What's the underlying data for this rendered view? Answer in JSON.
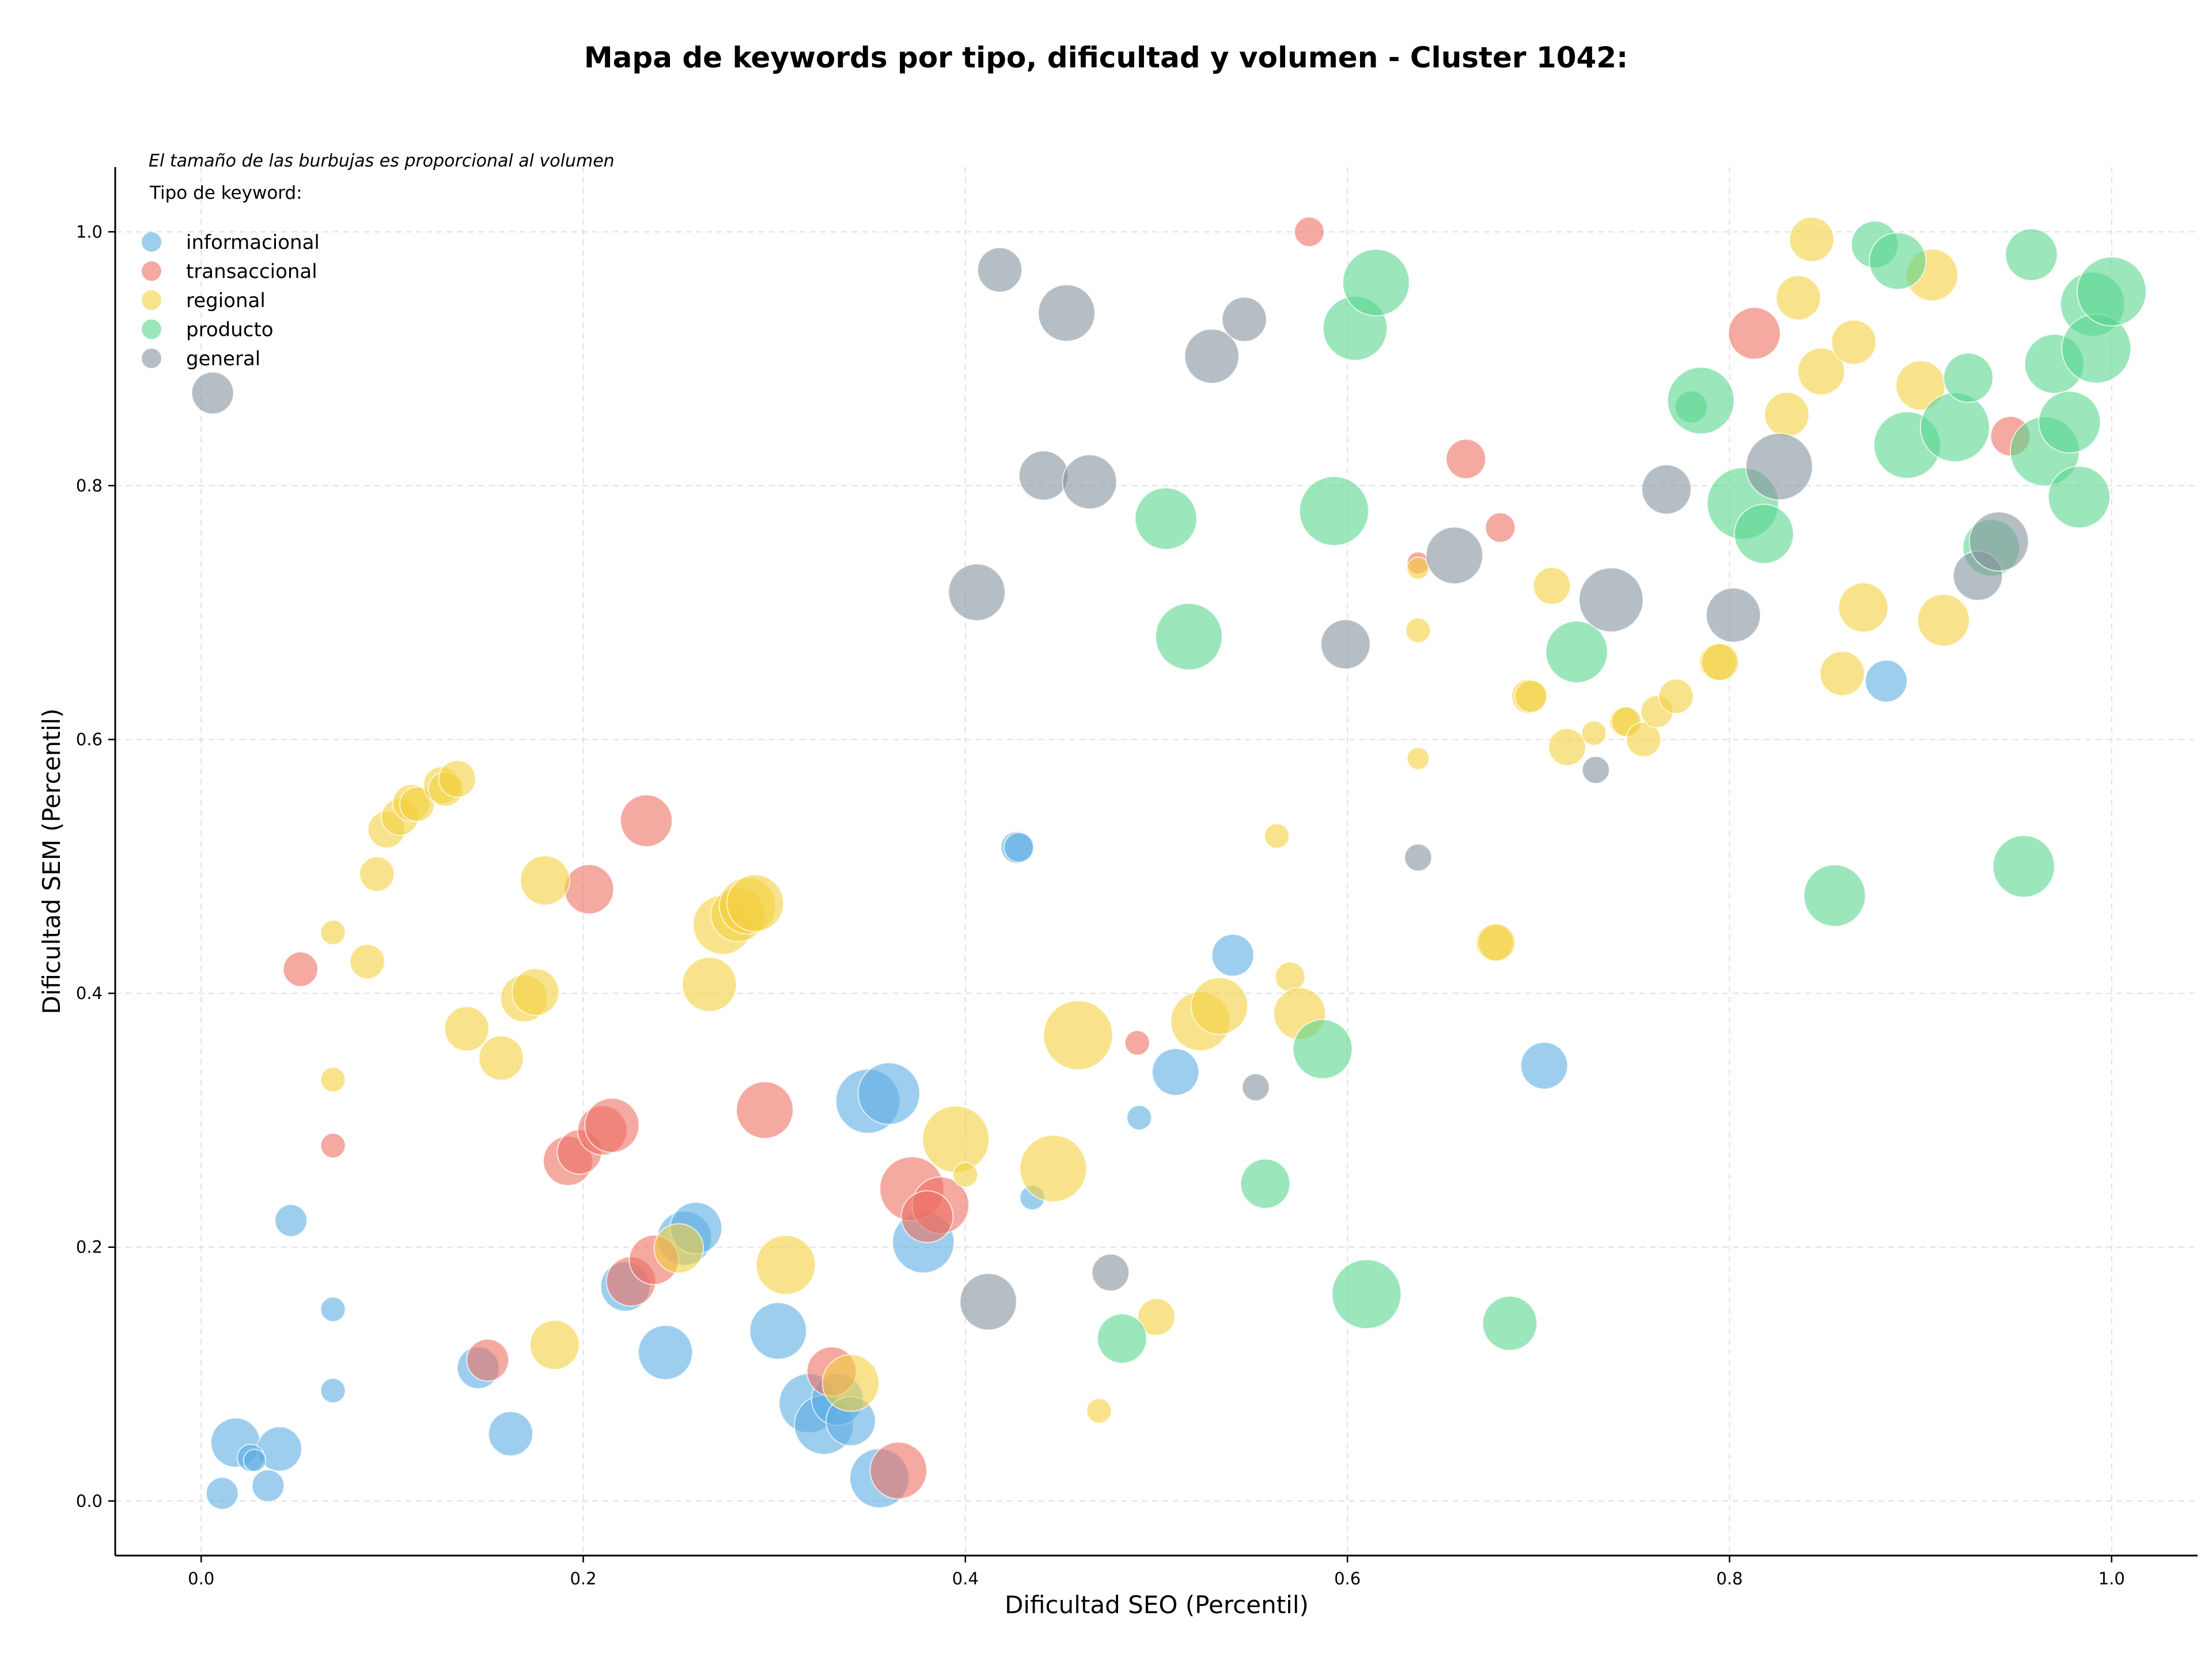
{
  "chart_data": {
    "type": "scatter",
    "title": "Mapa de keywords por tipo, dificultad y volumen - Cluster 1042:",
    "xlabel": "Dificultad SEO (Percentil)",
    "ylabel": "Dificultad SEM (Percentil)",
    "annotation": "El tamaño de las burbujas es proporcional al volumen",
    "legend_title": "Tipo de keyword:",
    "legend_position": "top-left",
    "xlim": [
      -0.045,
      1.045
    ],
    "ylim": [
      -0.043,
      1.051
    ],
    "xticks": [
      "0.0",
      "0.2",
      "0.4",
      "0.6",
      "0.8",
      "1.0"
    ],
    "yticks": [
      "0.0",
      "0.2",
      "0.4",
      "0.6",
      "0.8",
      "1.0"
    ],
    "grid": true,
    "size_note": "values triple is [x, y, relative volume]",
    "series": [
      {
        "name": "informacional",
        "color": "#5DADE2",
        "points": [
          [
            0.018,
            0.046,
            40
          ],
          [
            0.041,
            0.041,
            36
          ],
          [
            0.026,
            0.034,
            22
          ],
          [
            0.028,
            0.032,
            18
          ],
          [
            0.011,
            0.006,
            26
          ],
          [
            0.035,
            0.012,
            26
          ],
          [
            0.047,
            0.221,
            26
          ],
          [
            0.069,
            0.151,
            20
          ],
          [
            0.069,
            0.087,
            20
          ],
          [
            0.145,
            0.105,
            34
          ],
          [
            0.162,
            0.053,
            36
          ],
          [
            0.222,
            0.169,
            40
          ],
          [
            0.243,
            0.117,
            44
          ],
          [
            0.253,
            0.207,
            44
          ],
          [
            0.259,
            0.215,
            42
          ],
          [
            0.302,
            0.134,
            46
          ],
          [
            0.318,
            0.077,
            48
          ],
          [
            0.326,
            0.06,
            48
          ],
          [
            0.333,
            0.08,
            42
          ],
          [
            0.34,
            0.063,
            40
          ],
          [
            0.349,
            0.315,
            52
          ],
          [
            0.36,
            0.321,
            50
          ],
          [
            0.355,
            0.018,
            48
          ],
          [
            0.378,
            0.204,
            50
          ],
          [
            0.427,
            0.515,
            26
          ],
          [
            0.428,
            0.515,
            24
          ],
          [
            0.435,
            0.239,
            20
          ],
          [
            0.491,
            0.302,
            20
          ],
          [
            0.51,
            0.338,
            38
          ],
          [
            0.54,
            0.43,
            34
          ],
          [
            0.703,
            0.343,
            38
          ],
          [
            0.882,
            0.646,
            34
          ]
        ]
      },
      {
        "name": "transaccional",
        "color": "#EC7063",
        "points": [
          [
            0.052,
            0.419,
            28
          ],
          [
            0.069,
            0.28,
            20
          ],
          [
            0.15,
            0.111,
            34
          ],
          [
            0.192,
            0.268,
            40
          ],
          [
            0.198,
            0.275,
            36
          ],
          [
            0.203,
            0.482,
            40
          ],
          [
            0.21,
            0.292,
            40
          ],
          [
            0.215,
            0.296,
            44
          ],
          [
            0.225,
            0.173,
            40
          ],
          [
            0.233,
            0.536,
            42
          ],
          [
            0.237,
            0.19,
            40
          ],
          [
            0.295,
            0.308,
            46
          ],
          [
            0.33,
            0.102,
            40
          ],
          [
            0.365,
            0.024,
            46
          ],
          [
            0.372,
            0.246,
            52
          ],
          [
            0.387,
            0.233,
            46
          ],
          [
            0.38,
            0.224,
            42
          ],
          [
            0.49,
            0.361,
            20
          ],
          [
            0.58,
            1.0,
            24
          ],
          [
            0.637,
            0.739,
            18
          ],
          [
            0.662,
            0.821,
            32
          ],
          [
            0.68,
            0.767,
            24
          ],
          [
            0.813,
            0.92,
            42
          ],
          [
            0.947,
            0.839,
            32
          ]
        ]
      },
      {
        "name": "regional",
        "color": "#F4D03F",
        "points": [
          [
            0.069,
            0.448,
            20
          ],
          [
            0.069,
            0.332,
            20
          ],
          [
            0.087,
            0.425,
            28
          ],
          [
            0.092,
            0.494,
            28
          ],
          [
            0.097,
            0.529,
            30
          ],
          [
            0.104,
            0.539,
            30
          ],
          [
            0.11,
            0.55,
            30
          ],
          [
            0.113,
            0.549,
            28
          ],
          [
            0.126,
            0.564,
            30
          ],
          [
            0.128,
            0.561,
            28
          ],
          [
            0.134,
            0.569,
            30
          ],
          [
            0.139,
            0.372,
            36
          ],
          [
            0.157,
            0.349,
            36
          ],
          [
            0.169,
            0.396,
            38
          ],
          [
            0.175,
            0.401,
            38
          ],
          [
            0.18,
            0.489,
            40
          ],
          [
            0.185,
            0.123,
            40
          ],
          [
            0.25,
            0.199,
            40
          ],
          [
            0.266,
            0.407,
            44
          ],
          [
            0.273,
            0.454,
            48
          ],
          [
            0.281,
            0.462,
            44
          ],
          [
            0.286,
            0.469,
            46
          ],
          [
            0.29,
            0.471,
            46
          ],
          [
            0.306,
            0.186,
            48
          ],
          [
            0.34,
            0.093,
            46
          ],
          [
            0.395,
            0.285,
            54
          ],
          [
            0.4,
            0.257,
            20
          ],
          [
            0.446,
            0.262,
            54
          ],
          [
            0.459,
            0.367,
            56
          ],
          [
            0.47,
            0.071,
            20
          ],
          [
            0.5,
            0.145,
            30
          ],
          [
            0.523,
            0.378,
            48
          ],
          [
            0.533,
            0.39,
            46
          ],
          [
            0.563,
            0.524,
            20
          ],
          [
            0.57,
            0.413,
            24
          ],
          [
            0.575,
            0.384,
            42
          ],
          [
            0.637,
            0.735,
            18
          ],
          [
            0.637,
            0.686,
            20
          ],
          [
            0.637,
            0.585,
            18
          ],
          [
            0.677,
            0.44,
            30
          ],
          [
            0.678,
            0.44,
            30
          ],
          [
            0.695,
            0.634,
            28
          ],
          [
            0.696,
            0.634,
            26
          ],
          [
            0.707,
            0.721,
            30
          ],
          [
            0.715,
            0.594,
            30
          ],
          [
            0.729,
            0.605,
            20
          ],
          [
            0.745,
            0.614,
            24
          ],
          [
            0.746,
            0.614,
            24
          ],
          [
            0.755,
            0.6,
            28
          ],
          [
            0.762,
            0.622,
            26
          ],
          [
            0.772,
            0.634,
            28
          ],
          [
            0.794,
            0.661,
            30
          ],
          [
            0.795,
            0.661,
            30
          ],
          [
            0.83,
            0.856,
            36
          ],
          [
            0.836,
            0.948,
            36
          ],
          [
            0.843,
            0.994,
            36
          ],
          [
            0.848,
            0.89,
            38
          ],
          [
            0.859,
            0.652,
            36
          ],
          [
            0.865,
            0.913,
            36
          ],
          [
            0.87,
            0.704,
            40
          ],
          [
            0.9,
            0.879,
            40
          ],
          [
            0.906,
            0.966,
            42
          ],
          [
            0.912,
            0.694,
            42
          ]
        ]
      },
      {
        "name": "producto",
        "color": "#58D68D",
        "points": [
          [
            0.482,
            0.128,
            40
          ],
          [
            0.505,
            0.774,
            50
          ],
          [
            0.517,
            0.681,
            54
          ],
          [
            0.557,
            0.25,
            40
          ],
          [
            0.587,
            0.356,
            48
          ],
          [
            0.593,
            0.78,
            56
          ],
          [
            0.604,
            0.924,
            52
          ],
          [
            0.61,
            0.163,
            56
          ],
          [
            0.615,
            0.96,
            54
          ],
          [
            0.685,
            0.14,
            44
          ],
          [
            0.72,
            0.669,
            50
          ],
          [
            0.78,
            0.862,
            26
          ],
          [
            0.785,
            0.867,
            54
          ],
          [
            0.807,
            0.786,
            58
          ],
          [
            0.818,
            0.762,
            48
          ],
          [
            0.855,
            0.477,
            50
          ],
          [
            0.876,
            0.99,
            38
          ],
          [
            0.888,
            0.977,
            46
          ],
          [
            0.893,
            0.832,
            54
          ],
          [
            0.918,
            0.846,
            56
          ],
          [
            0.925,
            0.885,
            40
          ],
          [
            0.937,
            0.751,
            46
          ],
          [
            0.954,
            0.5,
            50
          ],
          [
            0.958,
            0.982,
            42
          ],
          [
            0.97,
            0.896,
            48
          ],
          [
            0.965,
            0.827,
            56
          ],
          [
            0.978,
            0.85,
            50
          ],
          [
            0.983,
            0.791,
            50
          ],
          [
            0.99,
            0.943,
            52
          ],
          [
            0.992,
            0.908,
            56
          ],
          [
            1.0,
            0.953,
            56
          ]
        ]
      },
      {
        "name": "general",
        "color": "#85929E",
        "points": [
          [
            0.006,
            0.873,
            34
          ],
          [
            0.406,
            0.716,
            46
          ],
          [
            0.412,
            0.157,
            46
          ],
          [
            0.418,
            0.97,
            36
          ],
          [
            0.441,
            0.808,
            40
          ],
          [
            0.453,
            0.936,
            46
          ],
          [
            0.465,
            0.803,
            44
          ],
          [
            0.476,
            0.18,
            30
          ],
          [
            0.529,
            0.902,
            44
          ],
          [
            0.546,
            0.931,
            36
          ],
          [
            0.552,
            0.326,
            22
          ],
          [
            0.599,
            0.675,
            40
          ],
          [
            0.637,
            0.507,
            22
          ],
          [
            0.656,
            0.745,
            46
          ],
          [
            0.73,
            0.576,
            22
          ],
          [
            0.738,
            0.71,
            52
          ],
          [
            0.767,
            0.797,
            40
          ],
          [
            0.802,
            0.698,
            44
          ],
          [
            0.826,
            0.815,
            54
          ],
          [
            0.93,
            0.729,
            40
          ],
          [
            0.941,
            0.756,
            48
          ]
        ]
      }
    ]
  }
}
